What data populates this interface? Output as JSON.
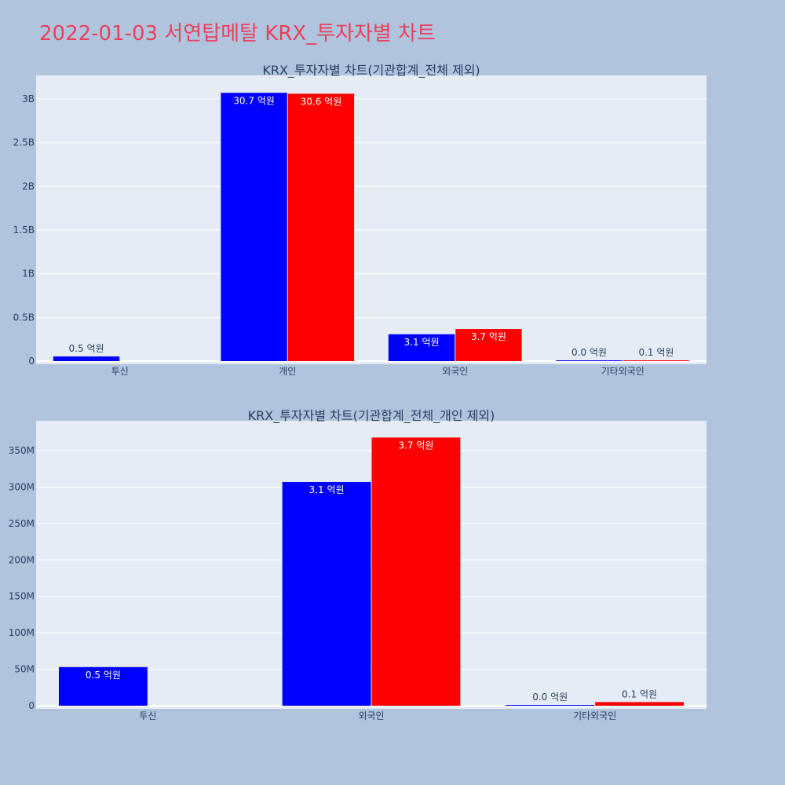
{
  "page": {
    "title": "2022-01-03 서연탑메탈 KRX_투자자별 차트"
  },
  "colors": {
    "background": "#b0c4de",
    "plot_background": "#e5ecf6",
    "title": "#e8415c",
    "buy": "#0000ff",
    "sell": "#ff0000",
    "text": "#2a3f5f"
  },
  "chart_data": [
    {
      "type": "bar",
      "title": "KRX_투자자별 차트(기관합계_전체 제외)",
      "categories": [
        "투신",
        "개인",
        "외국인",
        "기타외국인"
      ],
      "series": [
        {
          "color": "#0000ff",
          "values": [
            53000000,
            3070000000,
            307000000,
            1000000
          ],
          "labels": [
            "0.5 억원",
            "30.7 억원",
            "3.1 억원",
            "0.0 억원"
          ]
        },
        {
          "color": "#ff0000",
          "values": [
            0,
            3060000000,
            368000000,
            5000000
          ],
          "labels": [
            "",
            "30.6 억원",
            "3.7 억원",
            "0.1 억원"
          ]
        }
      ],
      "ylim": [
        0,
        3270000000
      ],
      "yticks": [
        0,
        500000000,
        1000000000,
        1500000000,
        2000000000,
        2500000000,
        3000000000
      ],
      "yticklabels": [
        "0",
        "0.5B",
        "1B",
        "1.5B",
        "2B",
        "2.5B",
        "3B"
      ],
      "grid": true
    },
    {
      "type": "bar",
      "title": "KRX_투자자별 차트(기관합계_전체_개인 제외)",
      "categories": [
        "투신",
        "외국인",
        "기타외국인"
      ],
      "series": [
        {
          "color": "#0000ff",
          "values": [
            53000000,
            307000000,
            1000000
          ],
          "labels": [
            "0.5 억원",
            "3.1 억원",
            "0.0 억원"
          ]
        },
        {
          "color": "#ff0000",
          "values": [
            0,
            368000000,
            5000000
          ],
          "labels": [
            "",
            "3.7 억원",
            "0.1 억원"
          ]
        }
      ],
      "ylim": [
        0,
        391000000
      ],
      "yticks": [
        0,
        50000000,
        100000000,
        150000000,
        200000000,
        250000000,
        300000000,
        350000000
      ],
      "yticklabels": [
        "0",
        "50M",
        "100M",
        "150M",
        "200M",
        "250M",
        "300M",
        "350M"
      ],
      "grid": true
    }
  ]
}
